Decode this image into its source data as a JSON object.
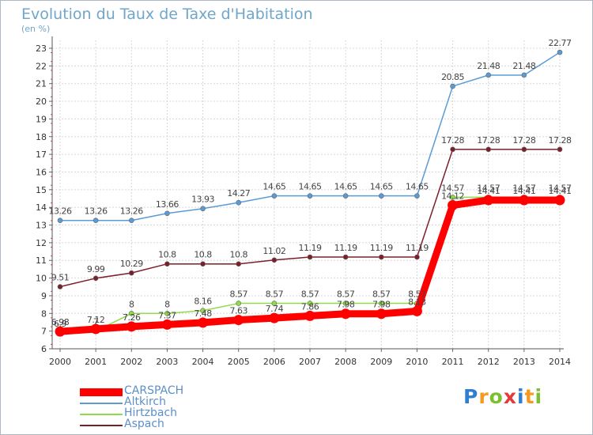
{
  "header": {
    "title": "Evolution du Taux de Taxe d'Habitation",
    "unit": "(en %)"
  },
  "logo": {
    "text": "Proxiti",
    "letter_colors": [
      "#2f7fd1",
      "#f39a1f",
      "#7cbf2f",
      "#e23b3b",
      "#2f7fd1",
      "#f39a1f",
      "#7cbf2f"
    ]
  },
  "chart_data": {
    "type": "line",
    "x": [
      2000,
      2001,
      2002,
      2003,
      2004,
      2005,
      2006,
      2007,
      2008,
      2009,
      2010,
      2011,
      2012,
      2013,
      2014
    ],
    "ylim": [
      6,
      23
    ],
    "yticks": [
      6,
      7,
      8,
      9,
      10,
      11,
      12,
      13,
      14,
      15,
      16,
      17,
      18,
      19,
      20,
      21,
      22,
      23
    ],
    "grid": true,
    "legend_position": "bottom-left",
    "series": [
      {
        "name": "CARSPACH",
        "color": "#ff0000",
        "values": [
          6.98,
          7.12,
          7.26,
          7.37,
          7.48,
          7.63,
          7.74,
          7.86,
          7.98,
          7.98,
          8.13,
          14.12,
          14.41,
          14.41,
          14.41
        ],
        "labels": [
          "6.98",
          "7.12",
          "7.26",
          "7.37",
          "7.48",
          "7.63",
          "7.74",
          "7.86",
          "7.98",
          "7.98",
          "8.13",
          "14.12",
          "14.41",
          "14.41",
          "14.41"
        ]
      },
      {
        "name": "Altkirch",
        "color": "#5b9bd5",
        "values": [
          13.26,
          13.26,
          13.26,
          13.66,
          13.93,
          14.27,
          14.65,
          14.65,
          14.65,
          14.65,
          14.65,
          20.85,
          21.48,
          21.48,
          22.77
        ],
        "labels": [
          "13.26",
          "13.26",
          "13.26",
          "13.66",
          "13.93",
          "14.27",
          "14.65",
          "14.65",
          "14.65",
          "14.65",
          "14.65",
          "20.85",
          "21.48",
          "21.48",
          "22.77"
        ]
      },
      {
        "name": "Hirtzbach",
        "color": "#8fdc4a",
        "values": [
          6.9,
          7,
          8,
          8,
          8.16,
          8.57,
          8.57,
          8.57,
          8.57,
          8.57,
          8.57,
          14.57,
          14.57,
          14.57,
          14.57
        ],
        "labels": [
          "6.9",
          "7",
          "8",
          "8",
          "8.16",
          "8.57",
          "8.57",
          "8.57",
          "8.57",
          "8.57",
          "8.57",
          "14.57",
          "14.57",
          "14.57",
          "14.57"
        ]
      },
      {
        "name": "Aspach",
        "color": "#7b1f2b",
        "values": [
          9.51,
          9.99,
          10.29,
          10.8,
          10.8,
          10.8,
          11.02,
          11.19,
          11.19,
          11.19,
          11.19,
          17.28,
          17.28,
          17.28,
          17.28
        ],
        "labels": [
          "9.51",
          "9.99",
          "10.29",
          "10.8",
          "10.8",
          "10.8",
          "11.02",
          "11.19",
          "11.19",
          "11.19",
          "11.19",
          "17.28",
          "17.28",
          "17.28",
          "17.28"
        ]
      }
    ]
  }
}
